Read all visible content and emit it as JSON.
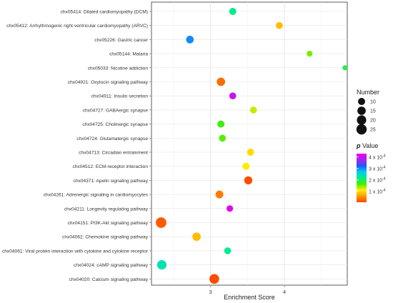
{
  "chart_data": {
    "type": "scatter",
    "xlabel": "Enrichment Score",
    "xticks": [
      3,
      4
    ],
    "xlim": [
      2.2,
      4.85
    ],
    "grid": true,
    "categories": [
      "chx05414: Dilated cardiomyopathy (DCM)",
      "chx05412: Arrhythmogenic right ventricular cardiomyopathy (ARVC)",
      "chx05226: Gastric cancer",
      "chx05144: Malaria",
      "chx05033: Nicotine addiction",
      "chx04921: Oxytocin signaling pathway",
      "chx04911: Insulin secretion",
      "chx04727: GABAergic synapse",
      "chx04725: Cholinergic synapse",
      "chx04724: Glutamatergic synapse",
      "chx04713: Circadian entrainment",
      "chx04512: ECM-receptor interaction",
      "chx04371: Apelin signaling pathway",
      "chx04261: Adrenergic signaling in cardiomyocytes",
      "chx04211: Longevity regulating pathway",
      "chx04151: PI3K-Akt signaling pathway",
      "chx04062: Chemokine signaling pathway",
      "chx04061: Viral protein interaction with cytokine and cytokine receptor",
      "chx04024: cAMP signaling pathway",
      "chx04020: Calcium signaling pathway"
    ],
    "points": [
      {
        "x": 3.3,
        "number": 10,
        "pvalue": 0.00022
      },
      {
        "x": 3.93,
        "number": 9,
        "pvalue": 8e-05
      },
      {
        "x": 2.72,
        "number": 12,
        "pvalue": 0.0003
      },
      {
        "x": 4.34,
        "number": 6,
        "pvalue": 0.00015
      },
      {
        "x": 4.82,
        "number": 4,
        "pvalue": 0.00019
      },
      {
        "x": 3.14,
        "number": 15,
        "pvalue": 3e-05
      },
      {
        "x": 3.3,
        "number": 9,
        "pvalue": 0.0004
      },
      {
        "x": 3.58,
        "number": 9,
        "pvalue": 0.00013
      },
      {
        "x": 3.14,
        "number": 10,
        "pvalue": 0.00017
      },
      {
        "x": 3.16,
        "number": 9,
        "pvalue": 0.00016
      },
      {
        "x": 3.54,
        "number": 10,
        "pvalue": 0.0001
      },
      {
        "x": 3.48,
        "number": 10,
        "pvalue": 0.00011
      },
      {
        "x": 3.51,
        "number": 14,
        "pvalue": 1e-05
      },
      {
        "x": 3.12,
        "number": 13,
        "pvalue": 4e-05
      },
      {
        "x": 3.26,
        "number": 8,
        "pvalue": 0.00042
      },
      {
        "x": 2.33,
        "number": 27,
        "pvalue": 2e-05
      },
      {
        "x": 2.81,
        "number": 15,
        "pvalue": 8e-05
      },
      {
        "x": 3.23,
        "number": 9,
        "pvalue": 0.00022
      },
      {
        "x": 2.34,
        "number": 20,
        "pvalue": 0.00024
      },
      {
        "x": 3.05,
        "number": 22,
        "pvalue": 1e-05
      }
    ],
    "size_legend": {
      "title": "Number",
      "values": [
        10,
        15,
        20,
        25
      ],
      "labels": [
        "10",
        "15",
        "20",
        "25"
      ]
    },
    "color_legend": {
      "title_italic": "p",
      "title_rest": " Value",
      "labels": [
        "4 x 10",
        "3 x 10",
        "2 x 10",
        "1 x 10"
      ],
      "exponent": "-4",
      "values": [
        0.0004,
        0.0003,
        0.0002,
        0.0001
      ],
      "range": [
        5e-06,
        0.00043
      ],
      "colors": [
        "#ff4400",
        "#ff9900",
        "#ffee00",
        "#44ee00",
        "#00ee88",
        "#00ccee",
        "#2255ff",
        "#aa22ee",
        "#ee00ee"
      ]
    },
    "legend_position": "right"
  }
}
